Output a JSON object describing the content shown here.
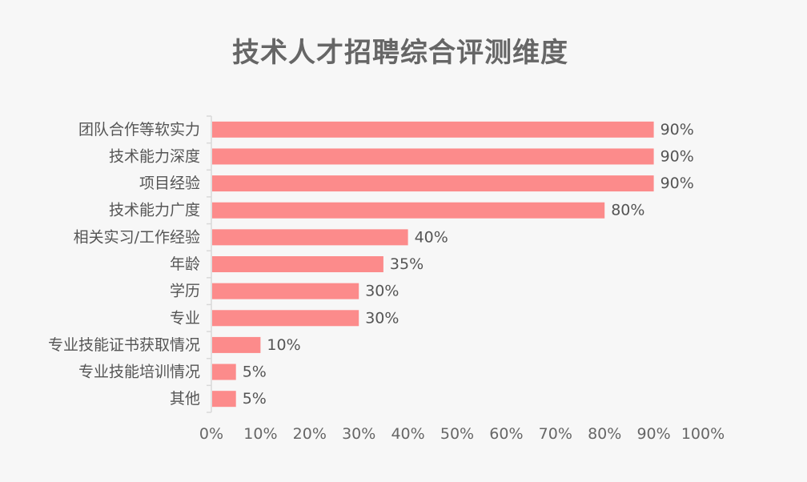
{
  "chart_data": {
    "type": "bar",
    "orientation": "horizontal",
    "title": "技术人才招聘综合评测维度",
    "categories": [
      "团队合作等软实力",
      "技术能力深度",
      "项目经验",
      "技术能力广度",
      "相关实习/工作经验",
      "年龄",
      "学历",
      "专业",
      "专业技能证书获取情况",
      "专业技能培训情况",
      "其他"
    ],
    "values": [
      90,
      90,
      90,
      80,
      40,
      35,
      30,
      30,
      10,
      5,
      5
    ],
    "value_labels": [
      "90%",
      "90%",
      "90%",
      "80%",
      "40%",
      "35%",
      "30%",
      "30%",
      "10%",
      "5%",
      "5%"
    ],
    "xlim": [
      0,
      100
    ],
    "x_ticks": [
      0,
      10,
      20,
      30,
      40,
      50,
      60,
      70,
      80,
      90,
      100
    ],
    "x_tick_labels": [
      "0%",
      "10%",
      "20%",
      "30%",
      "40%",
      "50%",
      "60%",
      "70%",
      "80%",
      "90%",
      "100%"
    ],
    "xlabel": "",
    "ylabel": "",
    "grid": false,
    "bar_color": "#fc8b8b",
    "axis_color": "#d9d9d9"
  }
}
